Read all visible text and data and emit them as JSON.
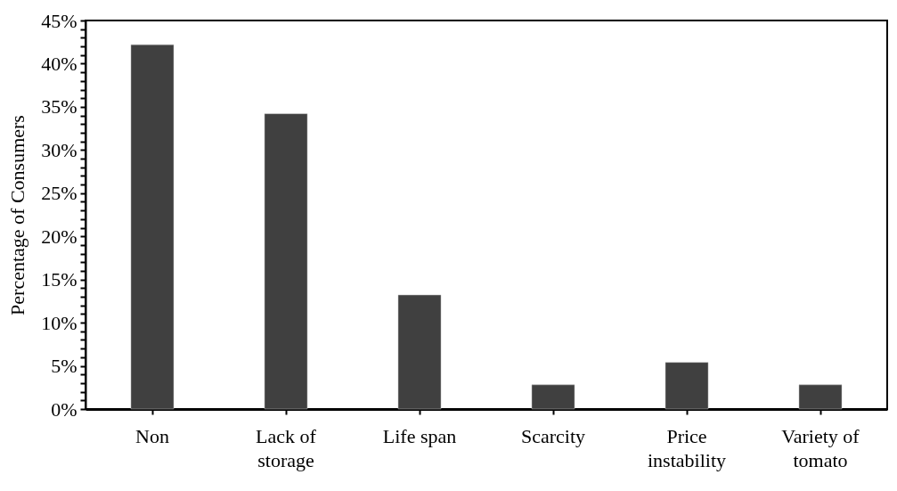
{
  "chart_data": {
    "type": "bar",
    "ylabel": "Percentage of Consumers",
    "categories": [
      "Non",
      "Lack of storage",
      "Life span",
      "Scarcity",
      "Price instability",
      "Variety of tomato"
    ],
    "values": [
      42.2,
      34.2,
      13.2,
      2.8,
      5.4,
      2.8
    ],
    "color": "#404040",
    "ylim": [
      0,
      45
    ],
    "yticks": [
      {
        "value": 0,
        "label": "0%"
      },
      {
        "value": 1,
        "label": null
      },
      {
        "value": 2,
        "label": null
      },
      {
        "value": 3,
        "label": null
      },
      {
        "value": 4,
        "label": null
      },
      {
        "value": 5,
        "label": "5%"
      },
      {
        "value": 6,
        "label": null
      },
      {
        "value": 7,
        "label": null
      },
      {
        "value": 8,
        "label": null
      },
      {
        "value": 9,
        "label": null
      },
      {
        "value": 10,
        "label": "10%"
      },
      {
        "value": 11,
        "label": null
      },
      {
        "value": 12,
        "label": null
      },
      {
        "value": 13,
        "label": null
      },
      {
        "value": 14,
        "label": null
      },
      {
        "value": 15,
        "label": "15%"
      },
      {
        "value": 16,
        "label": null
      },
      {
        "value": 17,
        "label": null
      },
      {
        "value": 18,
        "label": null
      },
      {
        "value": 19,
        "label": null
      },
      {
        "value": 20,
        "label": "20%"
      },
      {
        "value": 21,
        "label": null
      },
      {
        "value": 22,
        "label": null
      },
      {
        "value": 23,
        "label": null
      },
      {
        "value": 24,
        "label": null
      },
      {
        "value": 25,
        "label": "25%"
      },
      {
        "value": 26,
        "label": null
      },
      {
        "value": 27,
        "label": null
      },
      {
        "value": 28,
        "label": null
      },
      {
        "value": 29,
        "label": null
      },
      {
        "value": 30,
        "label": "30%"
      },
      {
        "value": 31,
        "label": null
      },
      {
        "value": 32,
        "label": null
      },
      {
        "value": 33,
        "label": null
      },
      {
        "value": 34,
        "label": null
      },
      {
        "value": 35,
        "label": "35%"
      },
      {
        "value": 36,
        "label": null
      },
      {
        "value": 37,
        "label": null
      },
      {
        "value": 38,
        "label": null
      },
      {
        "value": 39,
        "label": null
      },
      {
        "value": 40,
        "label": "40%"
      },
      {
        "value": 41,
        "label": null
      },
      {
        "value": 42,
        "label": null
      },
      {
        "value": 43,
        "label": null
      },
      {
        "value": 44,
        "label": null
      },
      {
        "value": 45,
        "label": "45%"
      }
    ],
    "grid": false
  }
}
